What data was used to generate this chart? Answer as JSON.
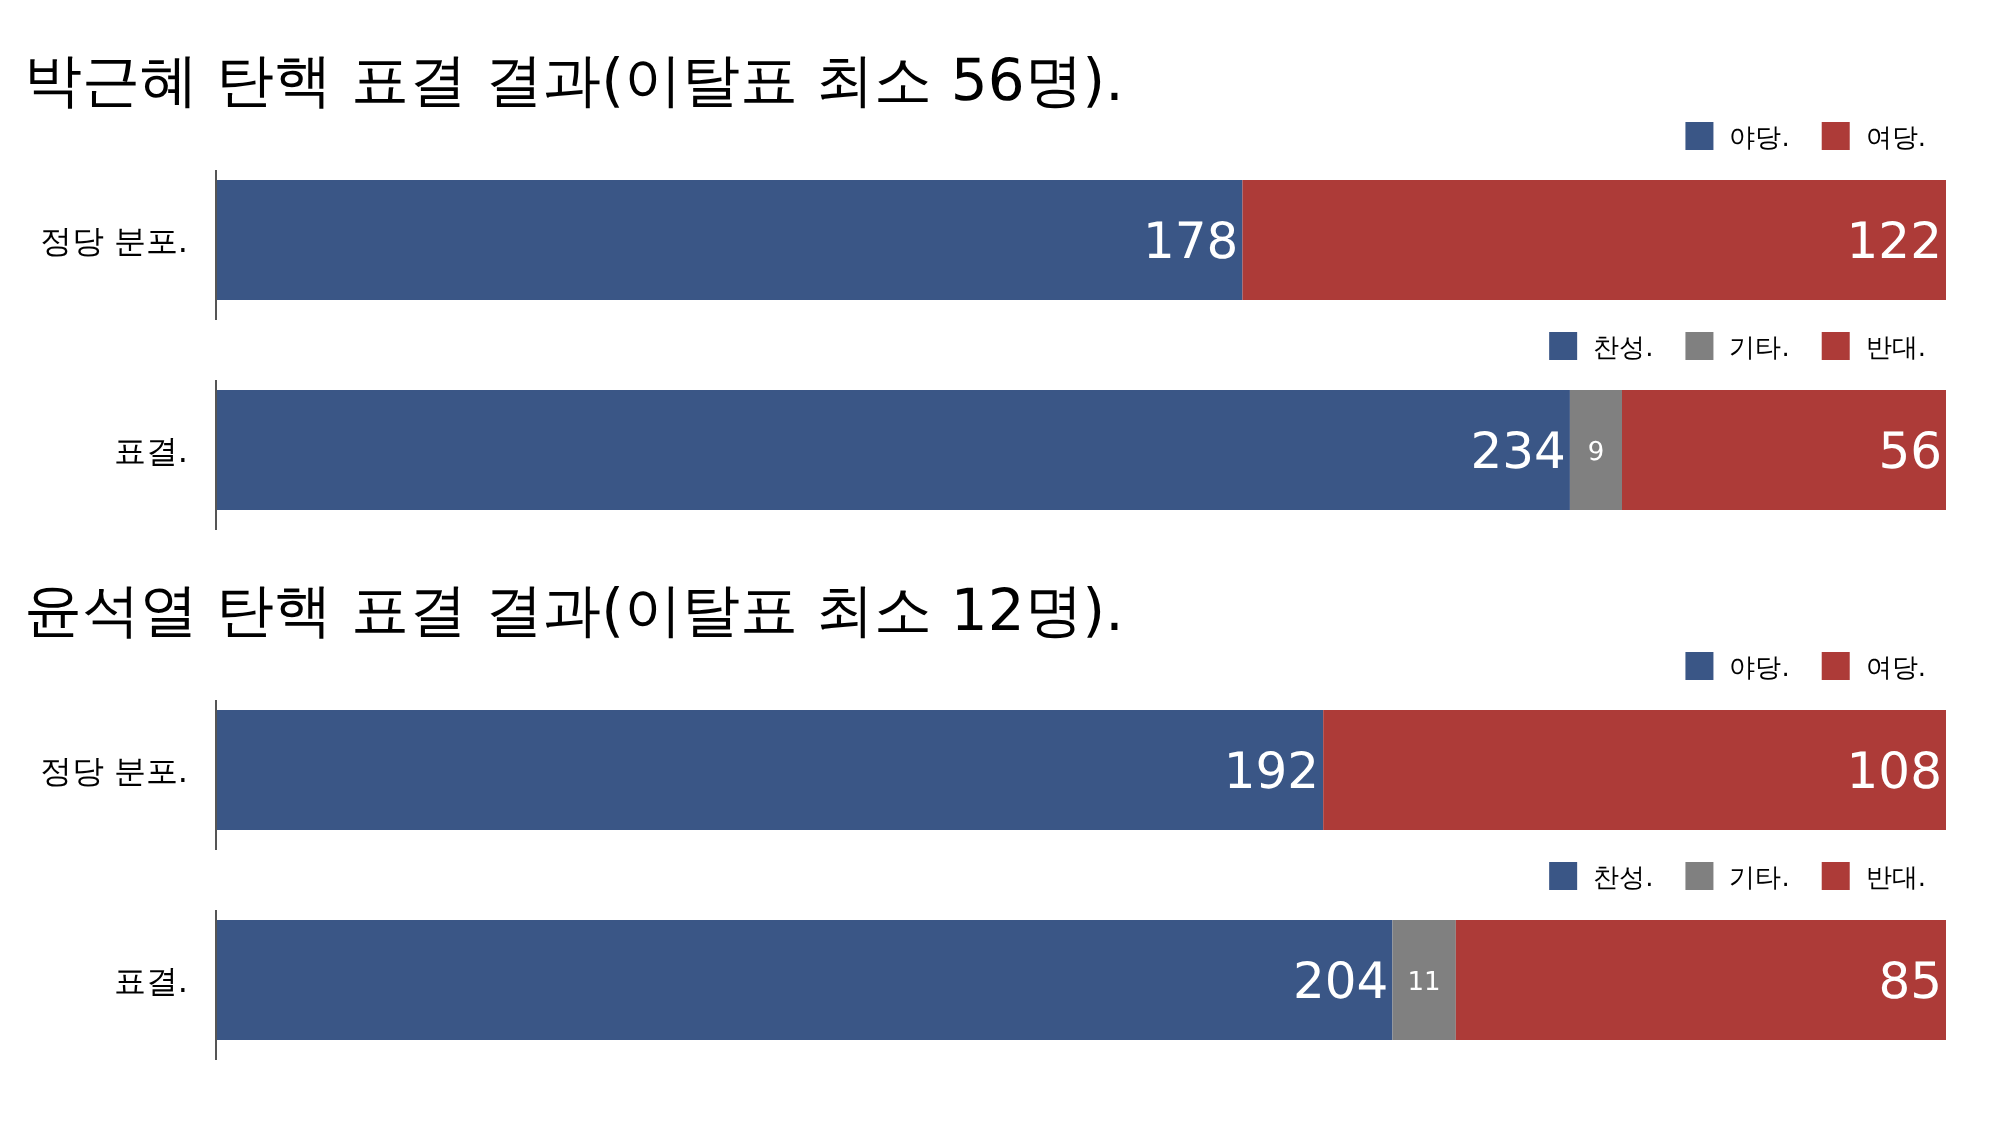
{
  "chart_data": [
    {
      "type": "bar",
      "orientation": "horizontal",
      "stacked": true,
      "data_labels": true,
      "legend": "top right",
      "title": "박근혜 탄핵 표결 결과(이탈표 최소 56명).",
      "categories": [
        "정당 분포."
      ],
      "series": [
        {
          "name": "야당.",
          "color": "#3a5686",
          "values": [
            178
          ]
        },
        {
          "name": "여당.",
          "color": "#ad3b38",
          "values": [
            122
          ]
        }
      ]
    },
    {
      "type": "bar",
      "orientation": "horizontal",
      "stacked": true,
      "data_labels": true,
      "legend": "top right",
      "categories": [
        "표결."
      ],
      "series": [
        {
          "name": "찬성.",
          "color": "#3a5686",
          "values": [
            234
          ]
        },
        {
          "name": "기타.",
          "color": "#808080",
          "values": [
            9
          ]
        },
        {
          "name": "반대.",
          "color": "#ad3b38",
          "values": [
            56
          ]
        }
      ]
    },
    {
      "type": "bar",
      "orientation": "horizontal",
      "stacked": true,
      "data_labels": true,
      "legend": "top right",
      "title": "윤석열 탄핵 표결 결과(이탈표 최소 12명).",
      "categories": [
        "정당 분포."
      ],
      "series": [
        {
          "name": "야당.",
          "color": "#3a5686",
          "values": [
            192
          ]
        },
        {
          "name": "여당.",
          "color": "#ad3b38",
          "values": [
            108
          ]
        }
      ]
    },
    {
      "type": "bar",
      "orientation": "horizontal",
      "stacked": true,
      "data_labels": true,
      "legend": "top right",
      "categories": [
        "표결."
      ],
      "series": [
        {
          "name": "찬성.",
          "color": "#3a5686",
          "values": [
            204
          ]
        },
        {
          "name": "기타.",
          "color": "#808080",
          "values": [
            11
          ]
        },
        {
          "name": "반대.",
          "color": "#ad3b38",
          "values": [
            85
          ]
        }
      ]
    }
  ]
}
